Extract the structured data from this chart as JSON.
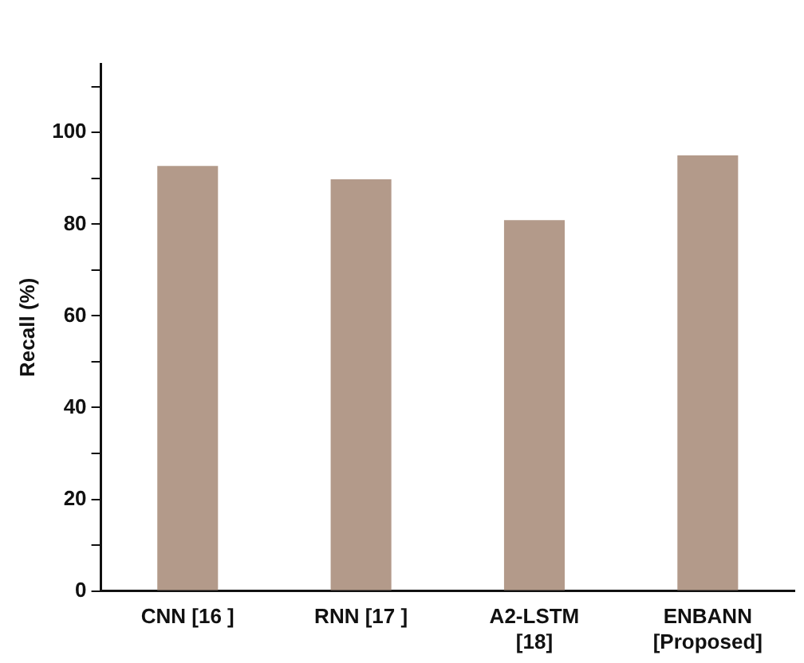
{
  "chart_data": {
    "type": "bar",
    "ylabel": "Recall (%)",
    "categories": [
      "CNN [16 ]",
      "RNN [17 ]",
      "A2-LSTM\n[18]",
      "ENBANN\n[Proposed]"
    ],
    "values": [
      92.7,
      89.8,
      80.9,
      95.0
    ],
    "color": "#b39a8a",
    "ylim": [
      0,
      115
    ],
    "yticks": [
      0,
      {
        "value": 10,
        "label": null
      },
      20,
      {
        "value": 30,
        "label": null
      },
      40,
      {
        "value": 50,
        "label": null
      },
      60,
      {
        "value": 70,
        "label": null
      },
      80,
      {
        "value": 90,
        "label": null
      },
      100,
      {
        "value": 110,
        "label": null
      }
    ],
    "grid": false,
    "legend": false
  }
}
